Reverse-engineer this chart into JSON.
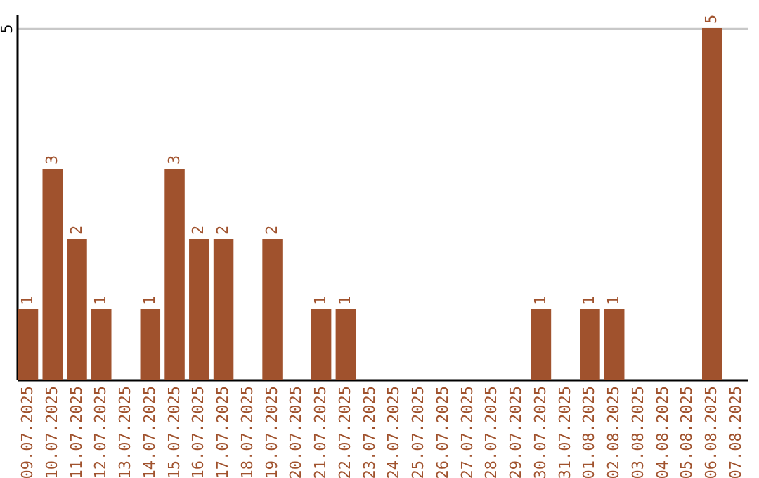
{
  "chart_data": {
    "type": "bar",
    "categories": [
      "09.07.2025",
      "10.07.2025",
      "11.07.2025",
      "12.07.2025",
      "13.07.2025",
      "14.07.2025",
      "15.07.2025",
      "16.07.2025",
      "17.07.2025",
      "18.07.2025",
      "19.07.2025",
      "20.07.2025",
      "21.07.2025",
      "22.07.2025",
      "23.07.2025",
      "24.07.2025",
      "25.07.2025",
      "26.07.2025",
      "27.07.2025",
      "28.07.2025",
      "29.07.2025",
      "30.07.2025",
      "31.07.2025",
      "01.08.2025",
      "02.08.2025",
      "03.08.2025",
      "04.08.2025",
      "05.08.2025",
      "06.08.2025",
      "07.08.2025"
    ],
    "values": [
      1,
      3,
      2,
      1,
      0,
      1,
      3,
      2,
      2,
      0,
      2,
      0,
      1,
      1,
      0,
      0,
      0,
      0,
      0,
      0,
      0,
      1,
      0,
      1,
      1,
      0,
      0,
      0,
      5,
      0
    ],
    "value_labels": [
      "1",
      "3",
      "2",
      "1",
      null,
      "1",
      "3",
      "2",
      "2",
      null,
      "2",
      null,
      "1",
      "1",
      null,
      null,
      null,
      null,
      null,
      null,
      null,
      "1",
      null,
      "1",
      "1",
      null,
      null,
      null,
      "5",
      null
    ],
    "color": "#a0522d",
    "ylim": [
      0,
      5.2
    ],
    "yticks": [
      5
    ],
    "grid": "y"
  }
}
